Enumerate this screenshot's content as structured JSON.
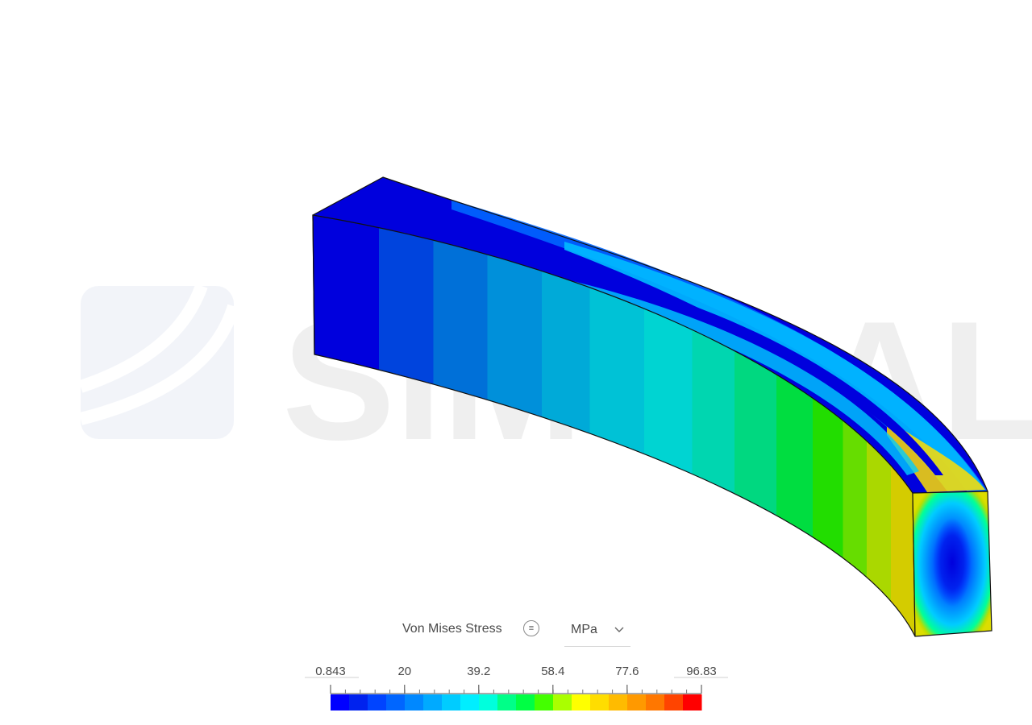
{
  "watermark": {
    "text": "SIMSCALE",
    "logo": "simscale-logo"
  },
  "result_quantity": {
    "label": "Von Mises Stress",
    "info_icon": "list-icon",
    "unit": "MPa",
    "unit_dropdown_icon": "chevron-down-icon"
  },
  "colorbar": {
    "min": 0.843,
    "max": 96.83,
    "tick_labels": [
      "0.843",
      "20",
      "39.2",
      "58.4",
      "77.6",
      "96.83"
    ],
    "tick_values": [
      0.843,
      20,
      39.2,
      58.4,
      77.6,
      96.83
    ],
    "colors": [
      "#0000ff",
      "#0022ee",
      "#0044ff",
      "#0066ff",
      "#0088ff",
      "#00aaff",
      "#00ccff",
      "#00eeff",
      "#00ffdd",
      "#00ff88",
      "#00ff44",
      "#44ff00",
      "#aaff00",
      "#ffff00",
      "#ffdd00",
      "#ffbb00",
      "#ff9900",
      "#ff7700",
      "#ff4400",
      "#ff0000"
    ]
  }
}
